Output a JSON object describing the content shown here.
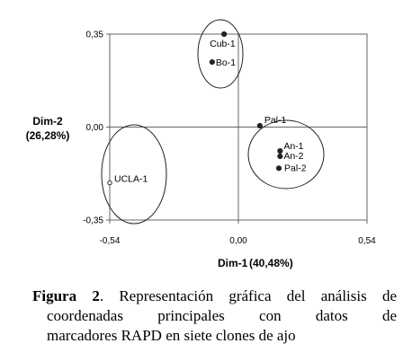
{
  "chart_data": {
    "type": "scatter",
    "xlabel": "Dim-1",
    "xlabel_pct": "(40,48%)",
    "ylabel": "Dim-2",
    "ylabel_pct": "(26,28%)",
    "xlim": [
      -0.54,
      0.54
    ],
    "ylim": [
      -0.35,
      0.35
    ],
    "x_ticks": [
      "-0,54",
      "0,00",
      "0,54"
    ],
    "y_ticks": [
      "0,35",
      "0,00",
      "-0,35"
    ],
    "grid": false,
    "points": [
      {
        "label": "Cub-1",
        "x": -0.06,
        "y": 0.35,
        "filled": true
      },
      {
        "label": "Bo-1",
        "x": -0.11,
        "y": 0.245,
        "filled": true
      },
      {
        "label": "Pal-1",
        "x": 0.09,
        "y": 0.005,
        "filled": true
      },
      {
        "label": "An-1",
        "x": 0.175,
        "y": -0.09,
        "filled": true
      },
      {
        "label": "An-2",
        "x": 0.175,
        "y": -0.11,
        "filled": true
      },
      {
        "label": "Pal-2",
        "x": 0.17,
        "y": -0.155,
        "filled": true
      },
      {
        "label": "UCLA-1",
        "x": -0.54,
        "y": -0.21,
        "filled": false
      }
    ],
    "groups": [
      {
        "members": [
          "Cub-1",
          "Bo-1"
        ]
      },
      {
        "members": [
          "Pal-1",
          "An-1",
          "An-2",
          "Pal-2"
        ]
      },
      {
        "members": [
          "UCLA-1"
        ]
      }
    ]
  },
  "caption": {
    "figure_label": "Figura 2",
    "line1": ". Representación gráfica del análisis de",
    "line2": "coordenadas principales con datos de",
    "line3": "marcadores RAPD en siete clones de ajo"
  }
}
